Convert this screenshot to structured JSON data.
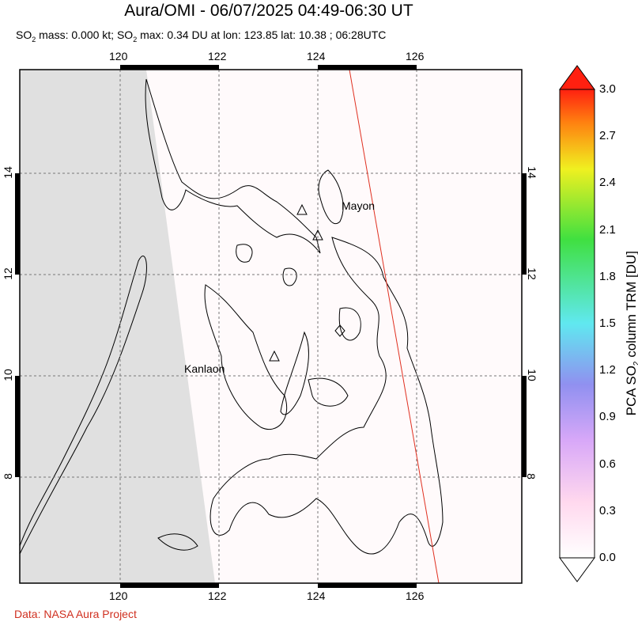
{
  "header": {
    "title": "Aura/OMI - 06/07/2025 04:49-06:30 UT",
    "subtitle_parts": [
      "SO",
      "2",
      " mass: 0.000 kt; SO",
      "2",
      " max: 0.34 DU at lon: 123.85 lat: 10.38 ; 06:28UTC"
    ]
  },
  "map": {
    "lon_range": [
      118,
      128
    ],
    "lat_range": [
      6,
      16
    ],
    "lon_ticks": [
      "120",
      "122",
      "124",
      "126"
    ],
    "lat_ticks": [
      "14",
      "12",
      "10",
      "8"
    ],
    "volcanoes": [
      {
        "name": "Mayon",
        "lon": 124.0,
        "lat": 12.7
      },
      {
        "name": "Kanlaon",
        "lon": 123.1,
        "lat": 10.4
      }
    ],
    "no_data_color": "#e0e0e0",
    "orbit_track_color": "#e03020"
  },
  "colorbar": {
    "title_parts": [
      "PCA SO",
      "2",
      " column TRM [DU]"
    ],
    "ticks": [
      "3.0",
      "2.7",
      "2.4",
      "2.1",
      "1.8",
      "1.5",
      "1.2",
      "0.9",
      "0.6",
      "0.3",
      "0.0"
    ],
    "range": [
      0,
      3
    ],
    "colors": [
      "#ffffff",
      "#ffd8ee",
      "#d8a8f8",
      "#9090f0",
      "#60e8f0",
      "#40e040",
      "#f0f020",
      "#ff8010",
      "#ff2010"
    ]
  },
  "footer": {
    "credit": "Data: NASA Aura Project"
  }
}
